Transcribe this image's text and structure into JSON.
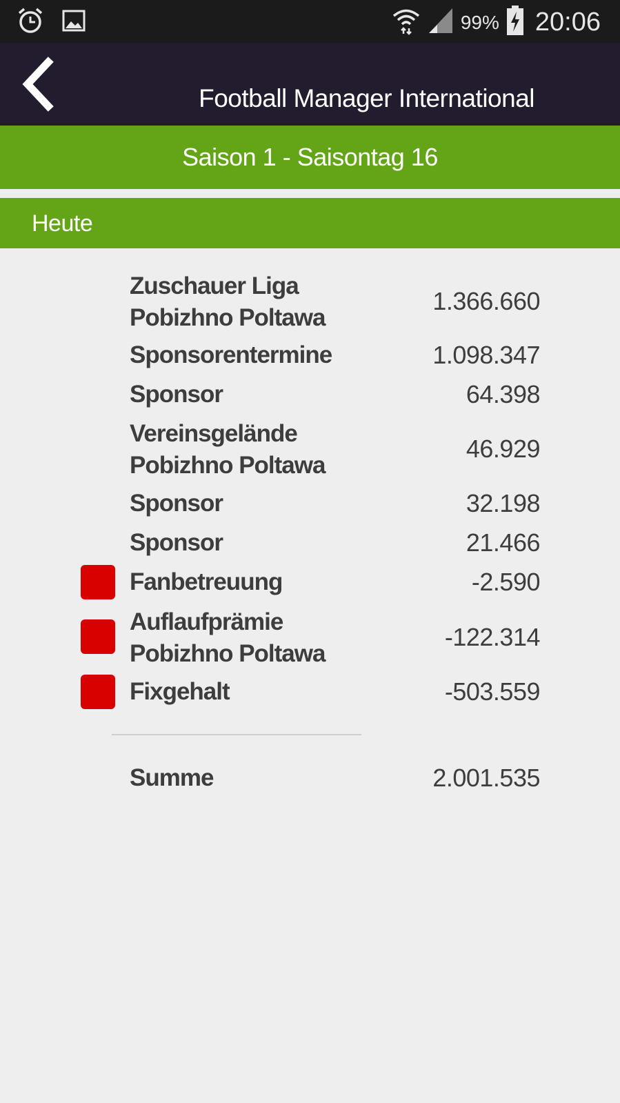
{
  "status_bar": {
    "left_icons": [
      "alarm-icon",
      "image-icon"
    ],
    "battery_percent": "99%",
    "time": "20:06",
    "right_icons": [
      "wifi-icon",
      "signal-icon",
      "battery-charging-icon"
    ]
  },
  "app_bar": {
    "back_icon": "chevron-left-icon",
    "title": "Football Manager International"
  },
  "season": {
    "title": "Saison 1 - Saisontag 16"
  },
  "section": {
    "title": "Heute"
  },
  "colors": {
    "positive": "#a3c93a",
    "negative": "#d90000",
    "header_green": "#64a518",
    "appbar": "#221c2e"
  },
  "items": [
    {
      "line1": "Zuschauer Liga",
      "line2": "Pobizhno Poltawa",
      "value": "1.366.660",
      "type": "positive"
    },
    {
      "line1": "Sponsorentermine",
      "line2": "",
      "value": "1.098.347",
      "type": "positive"
    },
    {
      "line1": "Sponsor",
      "line2": "",
      "value": "64.398",
      "type": "positive"
    },
    {
      "line1": "Vereinsgelände",
      "line2": "Pobizhno Poltawa",
      "value": "46.929",
      "type": "positive"
    },
    {
      "line1": "Sponsor",
      "line2": "",
      "value": "32.198",
      "type": "positive"
    },
    {
      "line1": "Sponsor",
      "line2": "",
      "value": "21.466",
      "type": "positive"
    },
    {
      "line1": "Fanbetreuung",
      "line2": "",
      "value": "-2.590",
      "type": "negative"
    },
    {
      "line1": "Auflaufprämie",
      "line2": "Pobizhno Poltawa",
      "value": "-122.314",
      "type": "negative"
    },
    {
      "line1": "Fixgehalt",
      "line2": "",
      "value": "-503.559",
      "type": "negative"
    }
  ],
  "total": {
    "label": "Summe",
    "value": "2.001.535",
    "type": "positive"
  }
}
